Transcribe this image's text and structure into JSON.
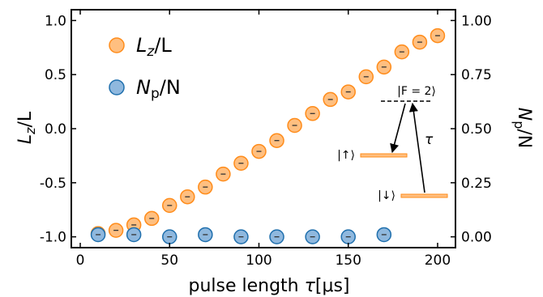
{
  "chart_data": {
    "type": "scatter",
    "xlabel_text": "pulse length",
    "xlabel_symbol": "τ",
    "xlabel_unit": "[μs]",
    "ylabel_left": "L",
    "ylabel_left_sub": "z",
    "ylabel_left_tail": "/L",
    "ylabel_right": "N",
    "ylabel_right_sub": "p",
    "ylabel_right_tail": "/N",
    "xlim": [
      -5,
      210
    ],
    "ylim_left": [
      -1.1,
      1.1
    ],
    "ylim_right": [
      -0.05,
      1.05
    ],
    "x_ticks": [
      0,
      50,
      100,
      150,
      200
    ],
    "x_tick_labels": [
      "0",
      "50",
      "100",
      "150",
      "200"
    ],
    "y_left_ticks": [
      -1.0,
      -0.5,
      0.0,
      0.5,
      1.0
    ],
    "y_left_tick_labels": [
      "-1.0",
      "-0.5",
      "0.0",
      "0.5",
      "1.0"
    ],
    "y_right_ticks": [
      0.0,
      0.25,
      0.5,
      0.75,
      1.0
    ],
    "y_right_tick_labels": [
      "0.00",
      "0.25",
      "0.50",
      "0.75",
      "1.00"
    ],
    "grid": false,
    "legend": "top-left",
    "series": [
      {
        "name": "Lz/L",
        "legend_main": "L",
        "legend_sub": "z",
        "legend_tail": "/L",
        "axis": "left",
        "color": "#ffbf80",
        "edge": "#ff8c1a",
        "x": [
          10,
          20,
          30,
          40,
          50,
          60,
          70,
          80,
          90,
          100,
          110,
          120,
          130,
          140,
          150,
          160,
          170,
          180,
          190,
          200
        ],
        "y": [
          -0.97,
          -0.94,
          -0.89,
          -0.83,
          -0.71,
          -0.63,
          -0.54,
          -0.42,
          -0.32,
          -0.21,
          -0.11,
          0.03,
          0.14,
          0.27,
          0.34,
          0.48,
          0.57,
          0.71,
          0.8,
          0.86
        ]
      },
      {
        "name": "Np/N",
        "legend_main": "N",
        "legend_sub": "p",
        "legend_tail": "/N",
        "axis": "right",
        "color": "#8fb8de",
        "edge": "#1f6fad",
        "x": [
          10,
          30,
          50,
          70,
          90,
          110,
          130,
          150,
          170
        ],
        "y": [
          0.01,
          0.01,
          0.0,
          0.01,
          0.0,
          0.0,
          0.0,
          0.0,
          0.01
        ]
      }
    ],
    "inset": {
      "state_F2": "|F = 2⟩",
      "state_up": "|↑⟩",
      "state_down": "|↓⟩",
      "tau": "τ"
    }
  }
}
